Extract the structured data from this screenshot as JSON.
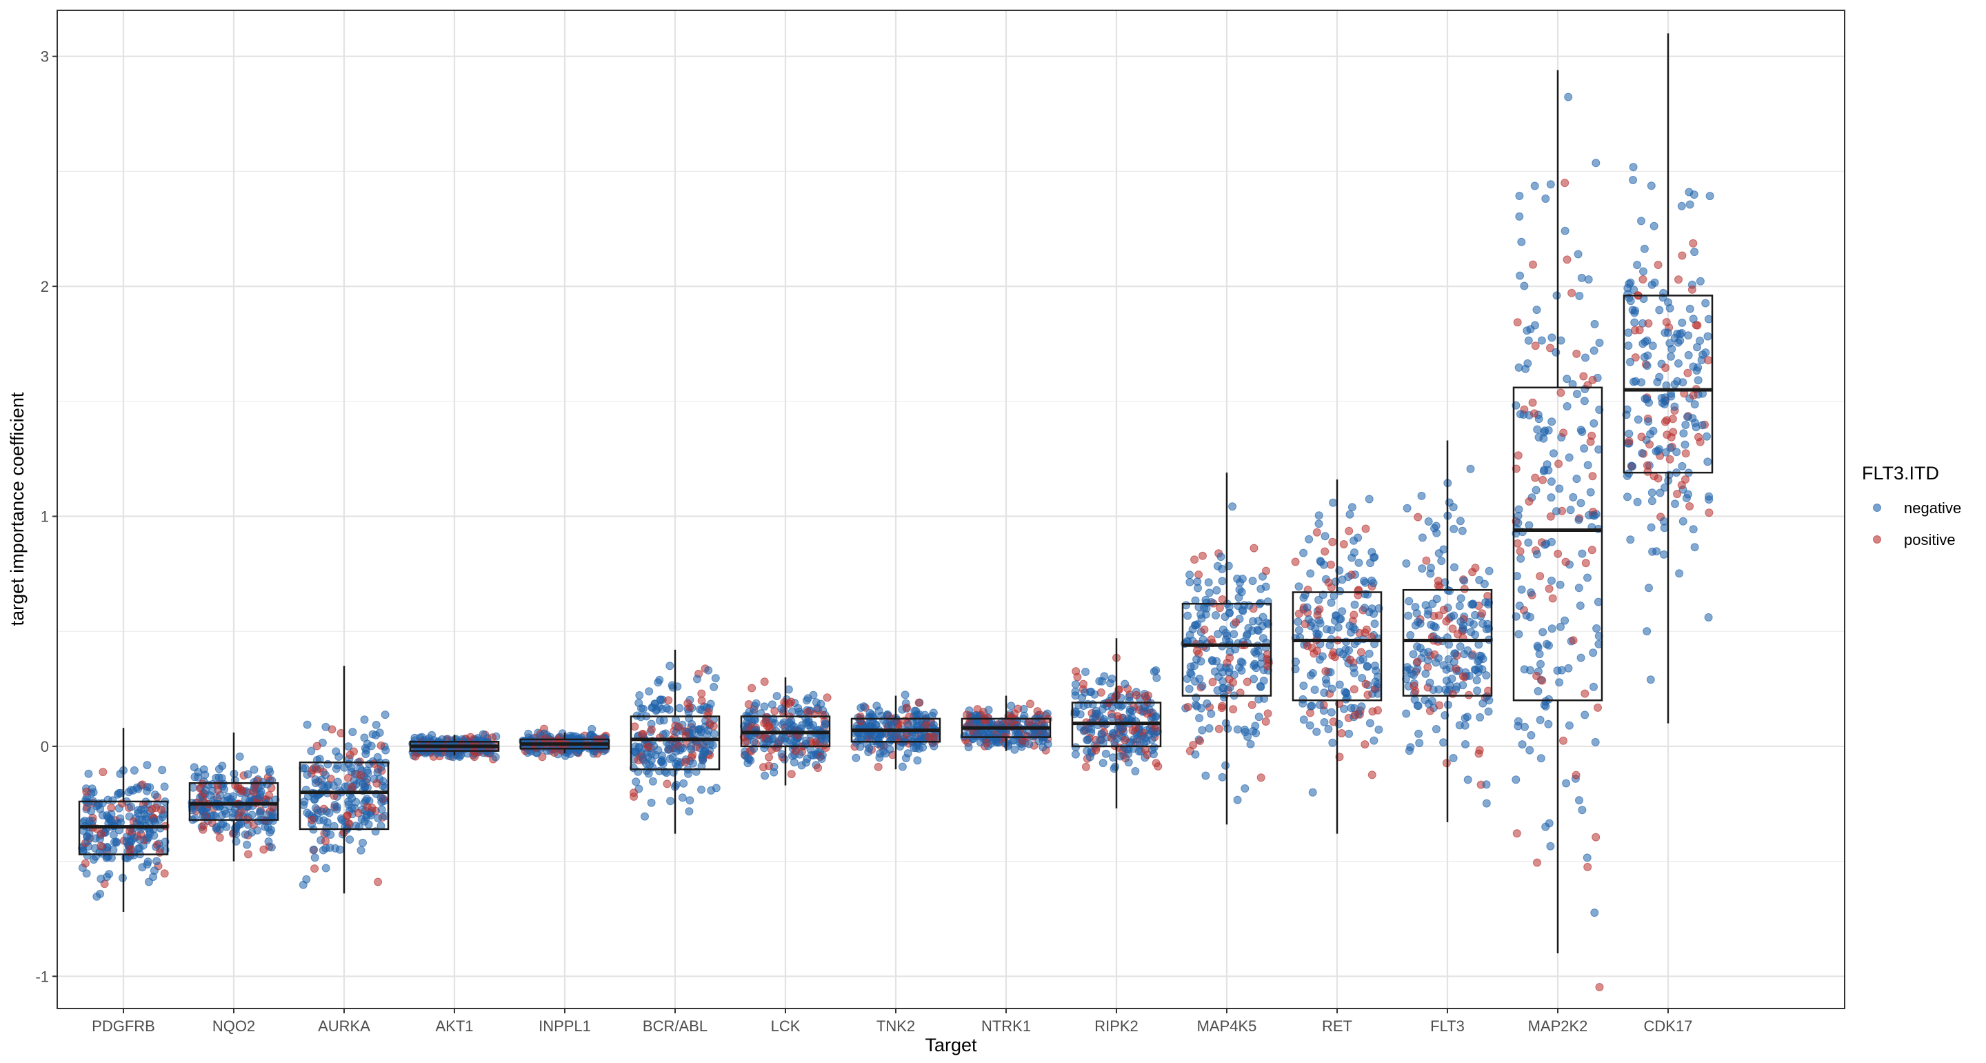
{
  "chart_data": {
    "type": "box-jitter",
    "xlabel": "Target",
    "ylabel": "target importance coefficient",
    "ylim": [
      -1.14,
      3.2
    ],
    "yticks": [
      -1,
      0,
      1,
      2,
      3
    ],
    "grid": true,
    "legend": {
      "title": "FLT3.ITD",
      "placement": "right",
      "entries": [
        {
          "label": "negative",
          "color": "#1f63ac"
        },
        {
          "label": "positive",
          "color": "#b8312f"
        }
      ]
    },
    "categories": [
      "PDGFRB",
      "NQO2",
      "AURKA",
      "AKT1",
      "INPPL1",
      "BCR/ABL",
      "LCK",
      "TNK2",
      "NTRK1",
      "RIPK2",
      "MAP4K5",
      "RET",
      "FLT3",
      "MAP2K2",
      "CDK17"
    ],
    "boxes": [
      {
        "min": -0.72,
        "q1": -0.47,
        "median": -0.35,
        "q3": -0.24,
        "max": 0.08
      },
      {
        "min": -0.5,
        "q1": -0.32,
        "median": -0.25,
        "q3": -0.16,
        "max": 0.06
      },
      {
        "min": -0.64,
        "q1": -0.36,
        "median": -0.2,
        "q3": -0.07,
        "max": 0.35
      },
      {
        "min": -0.04,
        "q1": -0.02,
        "median": 0.0,
        "q3": 0.02,
        "max": 0.05
      },
      {
        "min": -0.03,
        "q1": -0.01,
        "median": 0.01,
        "q3": 0.03,
        "max": 0.06
      },
      {
        "min": -0.38,
        "q1": -0.1,
        "median": 0.03,
        "q3": 0.13,
        "max": 0.42
      },
      {
        "min": -0.17,
        "q1": 0.0,
        "median": 0.06,
        "q3": 0.13,
        "max": 0.3
      },
      {
        "min": -0.1,
        "q1": 0.02,
        "median": 0.07,
        "q3": 0.12,
        "max": 0.22
      },
      {
        "min": -0.02,
        "q1": 0.04,
        "median": 0.08,
        "q3": 0.12,
        "max": 0.22
      },
      {
        "min": -0.27,
        "q1": 0.0,
        "median": 0.1,
        "q3": 0.19,
        "max": 0.47
      },
      {
        "min": -0.34,
        "q1": 0.22,
        "median": 0.44,
        "q3": 0.62,
        "max": 1.19
      },
      {
        "min": -0.38,
        "q1": 0.2,
        "median": 0.46,
        "q3": 0.67,
        "max": 1.16
      },
      {
        "min": -0.33,
        "q1": 0.22,
        "median": 0.46,
        "q3": 0.68,
        "max": 1.33
      },
      {
        "min": -0.9,
        "q1": 0.2,
        "median": 0.94,
        "q3": 1.56,
        "max": 2.94
      },
      {
        "min": 0.1,
        "q1": 1.19,
        "median": 1.55,
        "q3": 1.96,
        "max": 3.1
      }
    ]
  }
}
